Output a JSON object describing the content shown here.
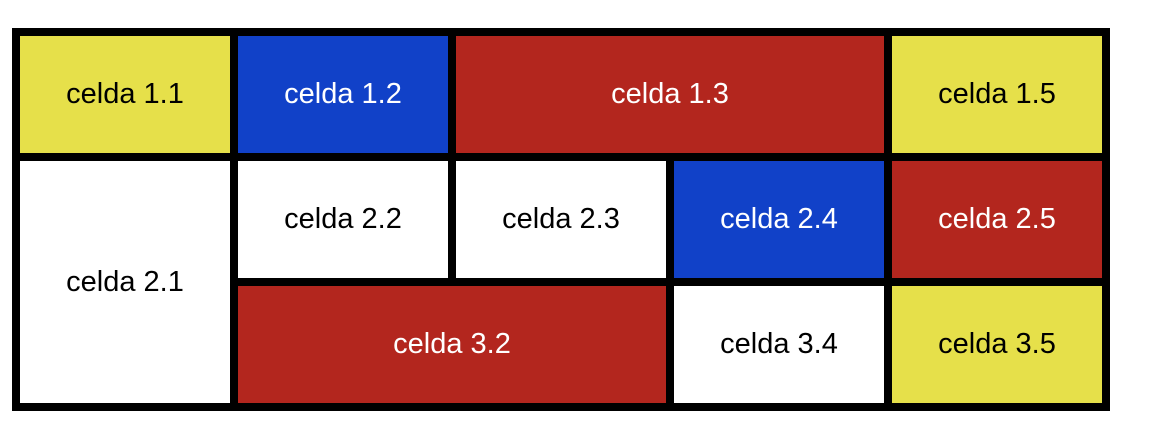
{
  "colors": {
    "yellow": "#e6e04a",
    "blue": "#1141c8",
    "red": "#b3261e",
    "white": "#ffffff",
    "border": "#000000"
  },
  "table": {
    "row1": {
      "c1": "celda 1.1",
      "c2": "celda 1.2",
      "c3": "celda 1.3",
      "c5": "celda 1.5"
    },
    "row2": {
      "c1": "celda 2.1",
      "c2": "celda 2.2",
      "c3": "celda 2.3",
      "c4": "celda 2.4",
      "c5": "celda 2.5"
    },
    "row3": {
      "c2": "celda 3.2",
      "c4": "celda 3.4",
      "c5": "celda 3.5"
    }
  }
}
